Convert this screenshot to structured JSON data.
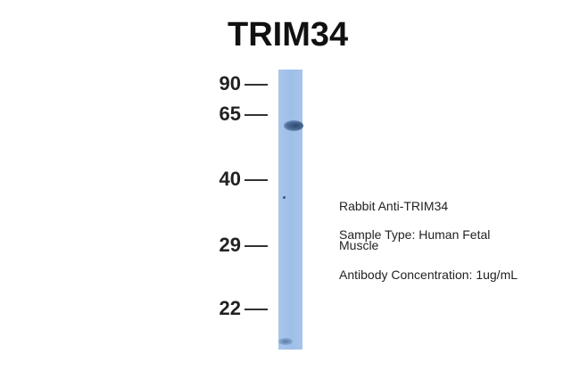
{
  "title": "TRIM34",
  "markers": [
    "90",
    "65",
    "40",
    "29",
    "22"
  ],
  "annotations": {
    "antibody": "Rabbit Anti-TRIM34",
    "sample_type_line1": "Sample Type: Human Fetal",
    "sample_type_line2": "Muscle",
    "concentration": "Antibody Concentration: 1ug/mL"
  },
  "colors": {
    "lane": "#a3c2e9",
    "band": "#2d4a6e"
  }
}
